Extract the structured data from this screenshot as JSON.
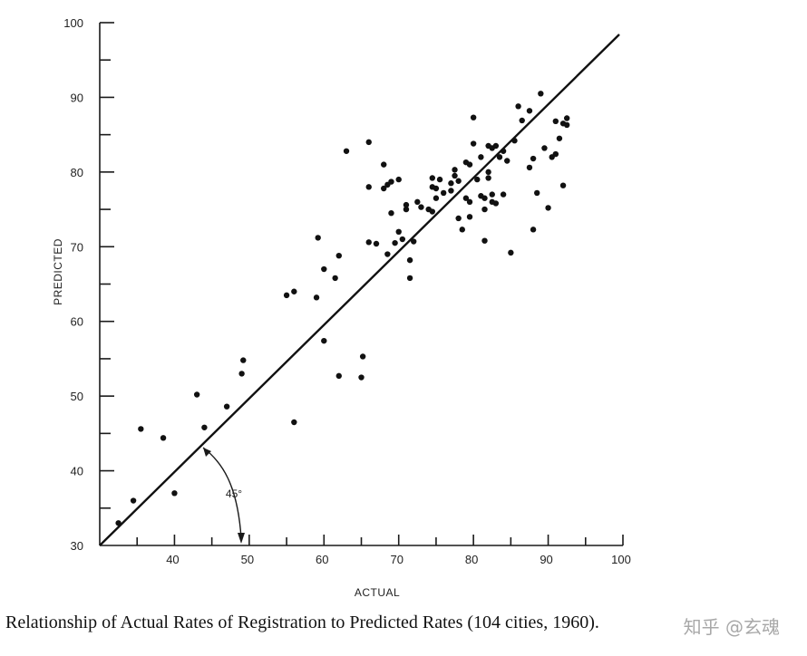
{
  "chart_data": {
    "type": "scatter",
    "title": "",
    "xlabel": "ACTUAL",
    "ylabel": "PREDICTED",
    "xlim": [
      30,
      100
    ],
    "ylim": [
      30,
      100
    ],
    "x_ticks": [
      40,
      50,
      60,
      70,
      80,
      90,
      100
    ],
    "y_ticks": [
      30,
      40,
      50,
      60,
      70,
      80,
      90,
      100
    ],
    "reference_line": {
      "type": "identity",
      "from": [
        30,
        30
      ],
      "to": [
        100,
        100
      ]
    },
    "annotation": {
      "text": "45°"
    },
    "points": [
      [
        32.5,
        33
      ],
      [
        34.5,
        36
      ],
      [
        35.5,
        45.6
      ],
      [
        38.5,
        44.4
      ],
      [
        40,
        37
      ],
      [
        43,
        50.2
      ],
      [
        44,
        45.8
      ],
      [
        47,
        48.6
      ],
      [
        49,
        53
      ],
      [
        49.2,
        54.8
      ],
      [
        55,
        63.5
      ],
      [
        56,
        64
      ],
      [
        56,
        46.5
      ],
      [
        59,
        63.2
      ],
      [
        59.2,
        71.2
      ],
      [
        60,
        67
      ],
      [
        60,
        57.4
      ],
      [
        61.5,
        65.8
      ],
      [
        62,
        68.8
      ],
      [
        62,
        52.7
      ],
      [
        63,
        82.8
      ],
      [
        65,
        52.5
      ],
      [
        65.2,
        55.3
      ],
      [
        66,
        84
      ],
      [
        66,
        78
      ],
      [
        66,
        70.6
      ],
      [
        67,
        70.4
      ],
      [
        68,
        81
      ],
      [
        68,
        77.8
      ],
      [
        68.5,
        78.3
      ],
      [
        68.5,
        69
      ],
      [
        69,
        78.7
      ],
      [
        69,
        74.5
      ],
      [
        69.5,
        70.5
      ],
      [
        70,
        79
      ],
      [
        70,
        72
      ],
      [
        70.5,
        71
      ],
      [
        71,
        75
      ],
      [
        71,
        75.6
      ],
      [
        71.5,
        68.2
      ],
      [
        71.5,
        65.8
      ],
      [
        72,
        70.7
      ],
      [
        72.5,
        76
      ],
      [
        73,
        75.3
      ],
      [
        74,
        75
      ],
      [
        74.5,
        78
      ],
      [
        74.5,
        79.2
      ],
      [
        74.5,
        74.7
      ],
      [
        75,
        76.5
      ],
      [
        75.5,
        79
      ],
      [
        76,
        77.2
      ],
      [
        77,
        78.5
      ],
      [
        77,
        77.5
      ],
      [
        77.5,
        79.5
      ],
      [
        77.5,
        80.3
      ],
      [
        78,
        78.8
      ],
      [
        78,
        73.8
      ],
      [
        78.5,
        72.3
      ],
      [
        79,
        81.3
      ],
      [
        79,
        76.5
      ],
      [
        79.5,
        81
      ],
      [
        79.5,
        74
      ],
      [
        79.5,
        76
      ],
      [
        80,
        87.3
      ],
      [
        80,
        83.8
      ],
      [
        80.5,
        79
      ],
      [
        81,
        82
      ],
      [
        81,
        76.8
      ],
      [
        81.5,
        76.5
      ],
      [
        81.5,
        75
      ],
      [
        81.5,
        70.8
      ],
      [
        82,
        83.5
      ],
      [
        82,
        80
      ],
      [
        82,
        79.2
      ],
      [
        82.5,
        83.2
      ],
      [
        82.5,
        77
      ],
      [
        83,
        83.5
      ],
      [
        83,
        75.8
      ],
      [
        83.5,
        82
      ],
      [
        84,
        82.8
      ],
      [
        84,
        77
      ],
      [
        84.5,
        81.5
      ],
      [
        85,
        69.2
      ],
      [
        85.5,
        84.2
      ],
      [
        86,
        88.8
      ],
      [
        86.5,
        86.9
      ],
      [
        87.5,
        88.2
      ],
      [
        87.5,
        80.6
      ],
      [
        88,
        81.8
      ],
      [
        88,
        72.3
      ],
      [
        88.5,
        77.2
      ],
      [
        89,
        90.5
      ],
      [
        89.5,
        83.2
      ],
      [
        90,
        75.2
      ],
      [
        90.5,
        82
      ],
      [
        91,
        82.4
      ],
      [
        91,
        86.8
      ],
      [
        91.5,
        84.5
      ],
      [
        92,
        78.2
      ],
      [
        92,
        86.5
      ],
      [
        92.5,
        87.2
      ],
      [
        92.5,
        86.3
      ],
      [
        82.5,
        76
      ],
      [
        75,
        77.8
      ]
    ]
  },
  "caption": "Relationship of Actual Rates of Registration to Predicted Rates (104 cities, 1960).",
  "watermark": "知乎 @玄魂"
}
